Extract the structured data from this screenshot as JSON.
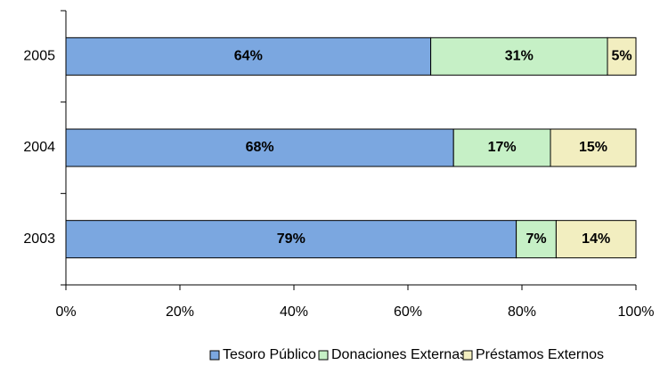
{
  "chart_data": {
    "type": "stacked-barh",
    "categories": [
      "2005",
      "2004",
      "2003"
    ],
    "series": [
      {
        "name": "Tesoro Público",
        "color": "#7ba7e0",
        "values": [
          64,
          68,
          79
        ],
        "value_labels": [
          "64%",
          "68%",
          "79%"
        ]
      },
      {
        "name": "Donaciones Externas",
        "color": "#c6f0c6",
        "values": [
          31,
          17,
          7
        ],
        "value_labels": [
          "31%",
          "17%",
          "7%"
        ]
      },
      {
        "name": "Préstamos Externos",
        "color": "#f2eec0",
        "values": [
          5,
          15,
          14
        ],
        "value_labels": [
          "5%",
          "15%",
          "14%"
        ]
      }
    ],
    "xlim": [
      0,
      100
    ],
    "xticks": [
      {
        "value": 0,
        "label": "0%"
      },
      {
        "value": 20,
        "label": "20%"
      },
      {
        "value": 40,
        "label": "40%"
      },
      {
        "value": 60,
        "label": "60%"
      },
      {
        "value": 80,
        "label": "80%"
      },
      {
        "value": 100,
        "label": "100%"
      }
    ],
    "legend": "bottom"
  }
}
